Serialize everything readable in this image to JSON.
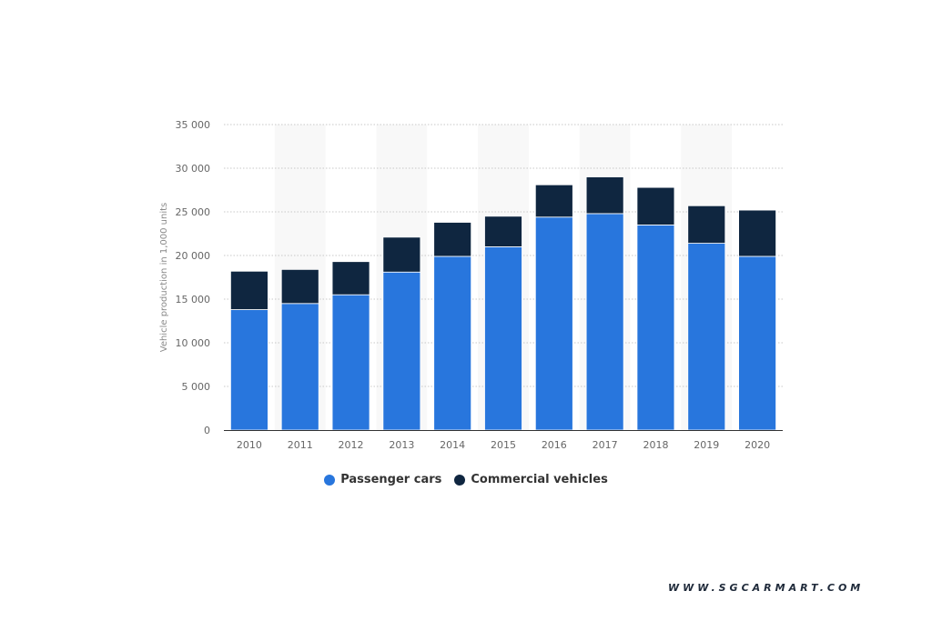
{
  "chart_data": {
    "type": "bar",
    "stacked": true,
    "categories": [
      "2010",
      "2011",
      "2012",
      "2013",
      "2014",
      "2015",
      "2016",
      "2017",
      "2018",
      "2019",
      "2020"
    ],
    "series": [
      {
        "name": "Passenger cars",
        "color": "#2876dd",
        "values": [
          13800,
          14500,
          15500,
          18100,
          19900,
          21000,
          24400,
          24800,
          23500,
          21400,
          19900
        ]
      },
      {
        "name": "Commercial vehicles",
        "color": "#0f2640",
        "values": [
          4400,
          3900,
          3800,
          4000,
          3900,
          3500,
          3700,
          4200,
          4300,
          4300,
          5300
        ]
      }
    ],
    "ylabel": "Vehicle production in 1,000 units",
    "xlabel": "",
    "ylim": [
      0,
      35000
    ],
    "yticks": [
      {
        "value": 0,
        "label": "0"
      },
      {
        "value": 5000,
        "label": "5 000"
      },
      {
        "value": 10000,
        "label": "10 000"
      },
      {
        "value": 15000,
        "label": "15 000"
      },
      {
        "value": 20000,
        "label": "20 000"
      },
      {
        "value": 25000,
        "label": "25 000"
      },
      {
        "value": 30000,
        "label": "30 000"
      },
      {
        "value": 35000,
        "label": "35 000"
      }
    ],
    "grid": true,
    "legend_position": "bottom-center"
  },
  "watermark": "WWW.SGCARMART.COM"
}
